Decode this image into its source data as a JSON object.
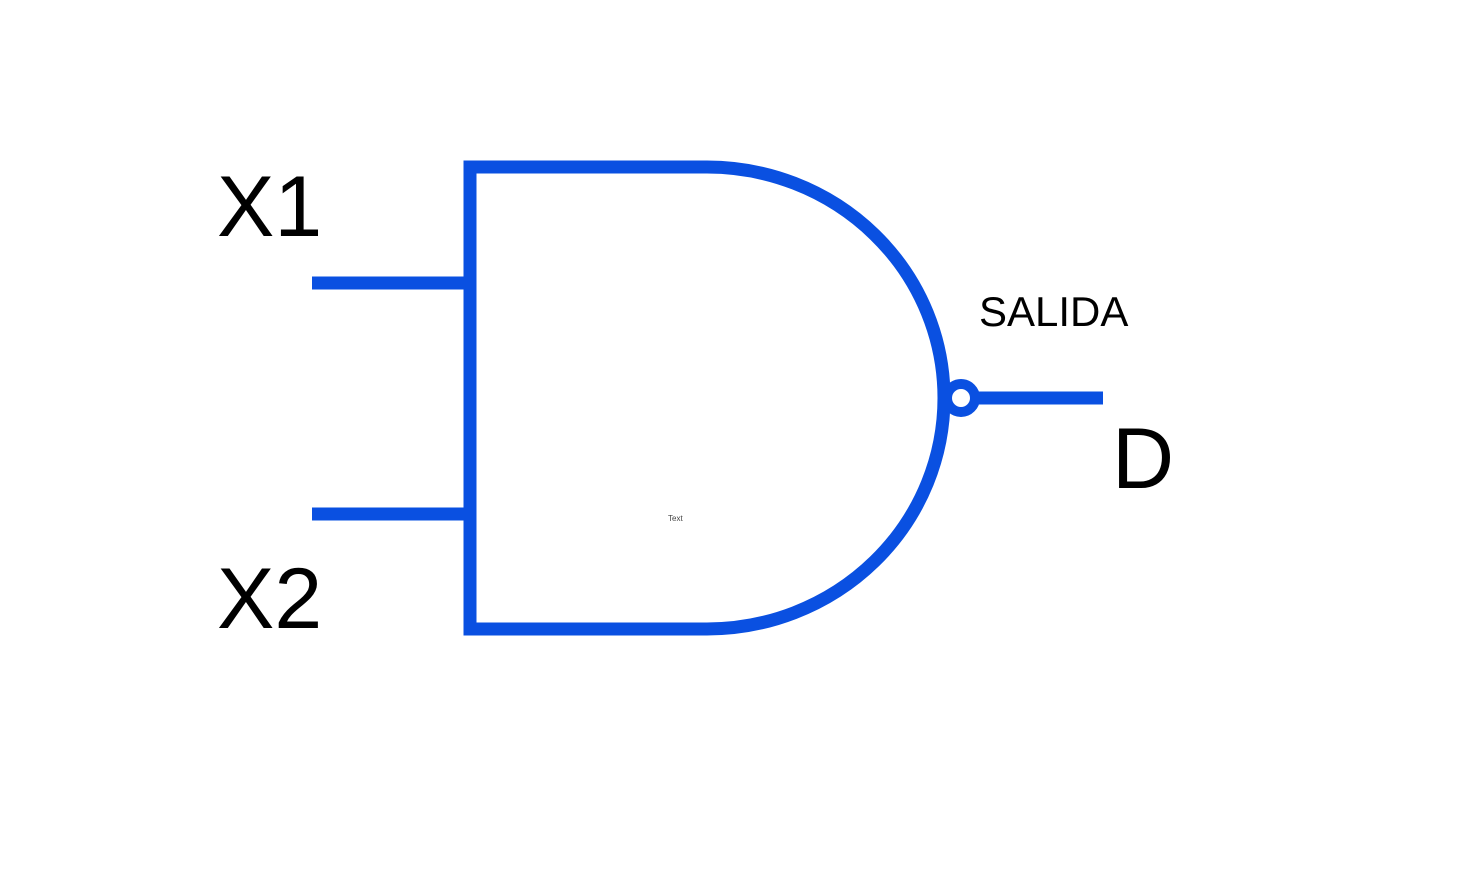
{
  "diagram": {
    "gate_type": "NAND",
    "stroke_color": "#0a50e1",
    "inputs": [
      {
        "label": "X1"
      },
      {
        "label": "X2"
      }
    ],
    "output": {
      "caption": "SALIDA",
      "label": "D"
    },
    "placeholder_text": "Text"
  }
}
